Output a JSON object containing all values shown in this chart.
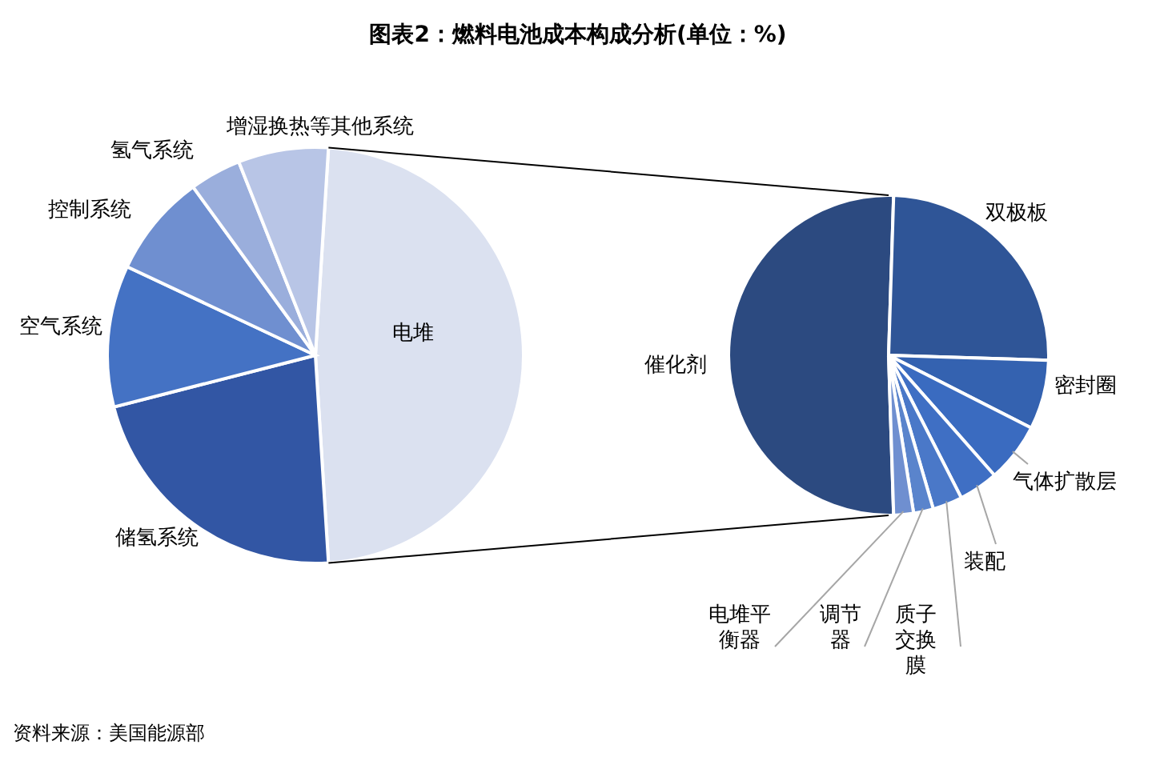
{
  "chart_data": [
    {
      "type": "pie",
      "title": "图表2：燃料电池成本构成分析(单位：%)",
      "categories": [
        "电堆",
        "储氢系统",
        "空气系统",
        "控制系统",
        "氢气系统",
        "增湿换热等其他系统"
      ],
      "values": [
        48,
        22,
        11,
        8,
        4,
        7
      ],
      "colors": [
        "#dbe1f0",
        "#3256a4",
        "#4472c4",
        "#6f8fd0",
        "#9aaedc",
        "#b8c5e6"
      ]
    },
    {
      "type": "pie",
      "annotations": [
        "资料来源：美国能源部"
      ],
      "categories": [
        "催化剂",
        "双极板",
        "密封圈",
        "气体扩散层",
        "装配",
        "质子交换膜",
        "调节器",
        "电堆平衡器"
      ],
      "values": [
        51,
        25,
        7,
        6,
        4,
        3,
        2,
        2
      ],
      "colors": [
        "#2c4a80",
        "#2f5597",
        "#3462b0",
        "#3a6bc0",
        "#3f6fc4",
        "#4a78c8",
        "#5a84cc",
        "#6f8fd0"
      ]
    }
  ]
}
